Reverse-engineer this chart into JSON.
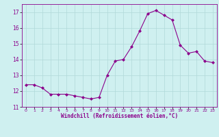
{
  "x": [
    0,
    1,
    2,
    3,
    4,
    5,
    6,
    7,
    8,
    9,
    10,
    11,
    12,
    13,
    14,
    15,
    16,
    17,
    18,
    19,
    20,
    21,
    22,
    23
  ],
  "y": [
    12.4,
    12.4,
    12.2,
    11.8,
    11.8,
    11.8,
    11.7,
    11.6,
    11.5,
    11.6,
    13.0,
    13.9,
    14.0,
    14.8,
    15.8,
    16.9,
    17.1,
    16.8,
    16.5,
    14.9,
    14.4,
    14.5,
    13.9,
    13.8
  ],
  "ylim": [
    11,
    17.5
  ],
  "yticks": [
    11,
    12,
    13,
    14,
    15,
    16,
    17
  ],
  "xlabel": "Windchill (Refroidissement éolien,°C)",
  "line_color": "#8B008B",
  "marker": "D",
  "marker_size": 2,
  "bg_color": "#cff0f0",
  "grid_color": "#b0d8d8",
  "tick_color": "#8B008B",
  "figsize": [
    3.2,
    2.0
  ],
  "dpi": 100
}
